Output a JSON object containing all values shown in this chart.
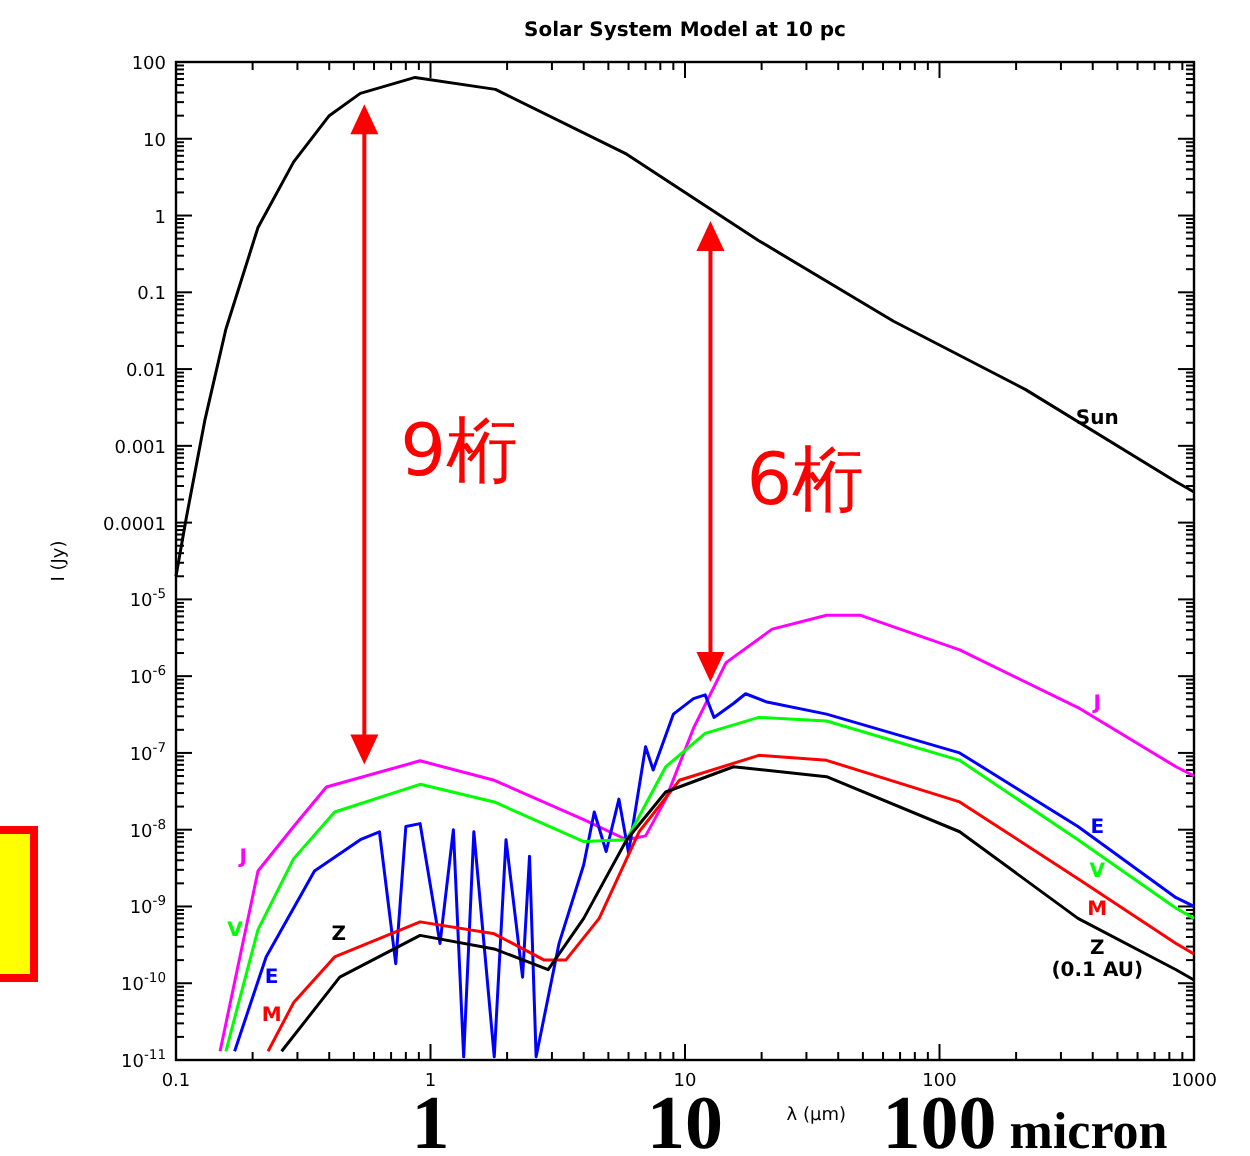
{
  "chart_data": {
    "type": "line",
    "title": "Solar System Model at 10 pc",
    "xlabel": "λ (μm)",
    "ylabel": "I (Jy)",
    "log": "xy",
    "grid": false,
    "xlim": [
      0.1,
      1000
    ],
    "ylim": [
      1e-11,
      100
    ],
    "xticks": [
      0.1,
      1,
      10,
      100,
      1000
    ],
    "yticks": [
      100,
      10,
      1,
      0.1,
      0.01,
      0.001,
      0.0001,
      {
        "value": 1e-05,
        "label": "10$^{-5}$"
      },
      {
        "value": 1e-06,
        "label": "10$^{-6}$"
      },
      {
        "value": 1e-07,
        "label": "10$^{-7}$"
      },
      {
        "value": 1e-08,
        "label": "10$^{-8}$"
      },
      {
        "value": 1e-09,
        "label": "10$^{-9}$"
      },
      {
        "value": 1e-10,
        "label": "10$^{-10}$"
      },
      {
        "value": 1e-11,
        "label": "10$^{-11}$"
      }
    ],
    "series": [
      {
        "name": "Sun",
        "color": "#000000",
        "x": [
          0.1,
          0.11,
          0.13,
          0.157,
          0.21,
          0.29,
          0.4,
          0.53,
          0.87,
          1.8,
          5.9,
          19.5,
          66,
          218,
          850,
          1000
        ],
        "values": [
          2e-05,
          0.00012,
          0.0022,
          0.033,
          0.7,
          5,
          20,
          39,
          63,
          44,
          6.3,
          0.47,
          0.042,
          0.0054,
          0.00034,
          0.00025
        ]
      },
      {
        "name": "J",
        "color": "#ff00ff",
        "x": [
          0.149,
          0.21,
          0.29,
          0.39,
          0.91,
          1.78,
          4.0,
          5.9,
          7.0,
          8.4,
          10.8,
          14.5,
          22,
          36,
          49,
          120,
          350,
          850,
          1000
        ],
        "values": [
          1.3e-11,
          2.9e-09,
          1.1e-08,
          3.6e-08,
          7.9e-08,
          4.4e-08,
          1.35e-08,
          7.4e-09,
          8.3e-09,
          2.5e-08,
          2.1e-07,
          1.5e-06,
          4.1e-06,
          6.2e-06,
          6.2e-06,
          2.2e-06,
          3.9e-07,
          6.6e-08,
          5e-08
        ]
      },
      {
        "name": "E",
        "color": "#0000ff",
        "x": [
          0.17,
          0.226,
          0.35,
          0.53,
          0.63,
          0.73,
          0.8,
          0.91,
          1.09,
          1.23,
          1.35,
          1.48,
          1.78,
          1.98,
          2.3,
          2.45,
          2.6,
          3.2,
          4.0,
          4.4,
          4.9,
          5.5,
          6,
          7,
          7.5,
          9,
          10.8,
          12,
          13,
          15.5,
          17.3,
          21,
          36,
          120,
          350,
          850,
          1000
        ],
        "values": [
          1.3e-11,
          2.2e-10,
          2.9e-09,
          7.4e-09,
          9.4e-09,
          1.8e-10,
          1.1e-08,
          1.2e-08,
          3.3e-10,
          1e-08,
          1.1e-11,
          9.4e-09,
          1.1e-11,
          7.4e-09,
          1.2e-10,
          4.5e-09,
          1.1e-11,
          3.3e-10,
          3.5e-09,
          1.7e-08,
          5.2e-09,
          2.5e-08,
          5e-09,
          1.2e-07,
          6e-08,
          3.2e-07,
          5.1e-07,
          5.7e-07,
          2.9e-07,
          4.4e-07,
          5.9e-07,
          4.6e-07,
          3.2e-07,
          1e-07,
          1.1e-08,
          1.3e-09,
          1e-09
        ]
      },
      {
        "name": "V",
        "color": "#00ff00",
        "x": [
          0.157,
          0.21,
          0.29,
          0.42,
          0.91,
          1.78,
          4.0,
          5.9,
          8.4,
          12,
          19.5,
          36,
          120,
          350,
          850,
          1000
        ],
        "values": [
          1.3e-11,
          5e-10,
          4.2e-09,
          1.7e-08,
          3.9e-08,
          2.3e-08,
          7e-09,
          7.4e-09,
          6.6e-08,
          1.8e-07,
          2.9e-07,
          2.6e-07,
          8e-08,
          7.4e-09,
          9.5e-10,
          7e-10
        ]
      },
      {
        "name": "M",
        "color": "#ff0000",
        "x": [
          0.23,
          0.29,
          0.42,
          0.91,
          1.78,
          2.8,
          3.4,
          4.6,
          6.6,
          9.5,
          19.5,
          36,
          120,
          350,
          850,
          1000
        ],
        "values": [
          1.3e-11,
          5.6e-11,
          2.2e-10,
          6.3e-10,
          4.4e-10,
          2e-10,
          2e-10,
          7e-10,
          9.4e-09,
          4.4e-08,
          9.3e-08,
          8e-08,
          2.3e-08,
          2.3e-09,
          3.3e-10,
          2.4e-10
        ]
      },
      {
        "name": "Z (0.1 AU)",
        "color": "#000000",
        "x": [
          0.26,
          0.44,
          0.91,
          1.78,
          2.9,
          4.0,
          5.9,
          8.4,
          15.5,
          36,
          120,
          350,
          850,
          1000
        ],
        "values": [
          1.3e-11,
          1.2e-10,
          4.2e-10,
          2.8e-10,
          1.5e-10,
          7e-10,
          7.4e-09,
          3.1e-08,
          6.6e-08,
          4.9e-08,
          9.4e-09,
          7e-10,
          1.5e-10,
          1.1e-10
        ]
      }
    ],
    "annotations": [
      "9桁",
      "6桁",
      "J",
      "V",
      "E",
      "M",
      "Z",
      "1",
      "10",
      "100 micron"
    ]
  }
}
